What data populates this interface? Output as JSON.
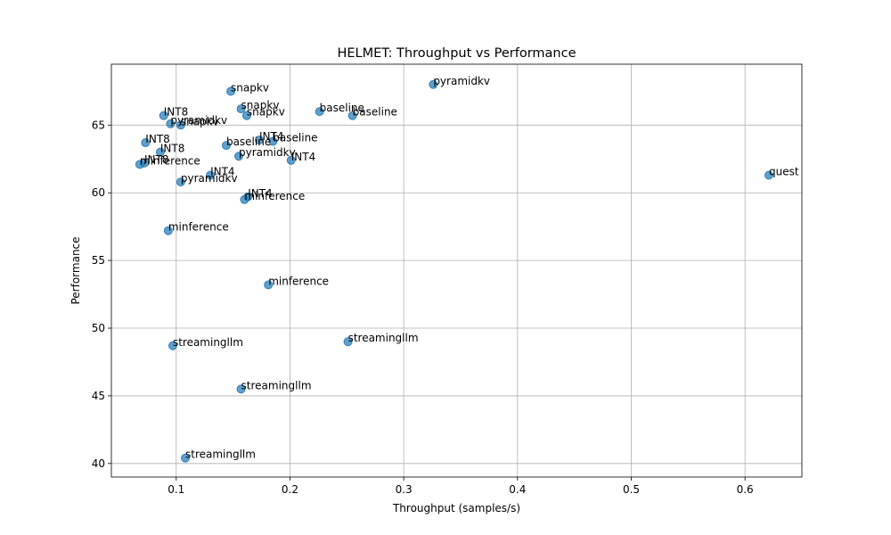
{
  "chart_data": {
    "type": "scatter",
    "title": "HELMET: Throughput vs Performance",
    "xlabel": "Throughput (samples/s)",
    "ylabel": "Performance",
    "xlim": [
      0.043,
      0.65
    ],
    "ylim": [
      39.0,
      69.5
    ],
    "xticks": [
      0.1,
      0.2,
      0.3,
      0.4,
      0.5,
      0.6
    ],
    "xtick_labels": [
      "0.1",
      "0.2",
      "0.3",
      "0.4",
      "0.5",
      "0.6"
    ],
    "yticks": [
      40,
      45,
      50,
      55,
      60,
      65
    ],
    "ytick_labels": [
      "40",
      "45",
      "50",
      "55",
      "60",
      "65"
    ],
    "grid": true,
    "color": "#1f77b4",
    "points": [
      {
        "x": 0.326,
        "y": 68.0,
        "label": "pyramidkv"
      },
      {
        "x": 0.148,
        "y": 67.5,
        "label": "snapkv"
      },
      {
        "x": 0.226,
        "y": 66.0,
        "label": "baseline"
      },
      {
        "x": 0.157,
        "y": 66.2,
        "label": "snapkv"
      },
      {
        "x": 0.162,
        "y": 65.7,
        "label": "snapkv"
      },
      {
        "x": 0.255,
        "y": 65.7,
        "label": "baseline"
      },
      {
        "x": 0.089,
        "y": 65.7,
        "label": "INT8"
      },
      {
        "x": 0.095,
        "y": 65.1,
        "label": "pyramidkv"
      },
      {
        "x": 0.104,
        "y": 65.0,
        "label": "snapkv"
      },
      {
        "x": 0.073,
        "y": 63.7,
        "label": "INT8"
      },
      {
        "x": 0.173,
        "y": 63.9,
        "label": "INT4"
      },
      {
        "x": 0.185,
        "y": 63.8,
        "label": "baseline"
      },
      {
        "x": 0.144,
        "y": 63.5,
        "label": "baseline"
      },
      {
        "x": 0.086,
        "y": 63.0,
        "label": "INT8"
      },
      {
        "x": 0.155,
        "y": 62.7,
        "label": "pyramidkv"
      },
      {
        "x": 0.201,
        "y": 62.4,
        "label": "INT4"
      },
      {
        "x": 0.068,
        "y": 62.1,
        "label": "minference"
      },
      {
        "x": 0.072,
        "y": 62.2,
        "label": "INT8"
      },
      {
        "x": 0.13,
        "y": 61.3,
        "label": "INT4"
      },
      {
        "x": 0.104,
        "y": 60.8,
        "label": "pyramidkv"
      },
      {
        "x": 0.621,
        "y": 61.3,
        "label": "quest"
      },
      {
        "x": 0.163,
        "y": 59.7,
        "label": "INT4"
      },
      {
        "x": 0.16,
        "y": 59.5,
        "label": "minference"
      },
      {
        "x": 0.093,
        "y": 57.2,
        "label": "minference"
      },
      {
        "x": 0.181,
        "y": 53.2,
        "label": "minference"
      },
      {
        "x": 0.251,
        "y": 49.0,
        "label": "streamingllm"
      },
      {
        "x": 0.097,
        "y": 48.7,
        "label": "streamingllm"
      },
      {
        "x": 0.157,
        "y": 45.5,
        "label": "streamingllm"
      },
      {
        "x": 0.108,
        "y": 40.4,
        "label": "streamingllm"
      }
    ]
  }
}
